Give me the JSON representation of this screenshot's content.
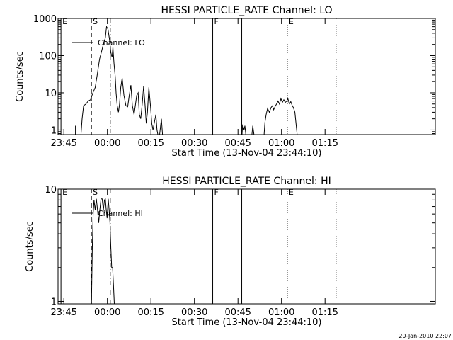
{
  "footer": {
    "timestamp": "20-Jan-2010 22:07"
  },
  "chart_data": [
    {
      "type": "line",
      "title": "HESSI PARTICLE_RATE Channel: LO",
      "xlabel": "Start Time (13-Nov-04 23:44:10)",
      "ylabel": "Counts/sec",
      "y_scale": "log",
      "ylim": [
        0.75,
        1000
      ],
      "xlim_minutes": [
        -1,
        129
      ],
      "x_tick_labels": [
        {
          "minute": 1,
          "label": "23:45"
        },
        {
          "minute": 16,
          "label": "00:00"
        },
        {
          "minute": 31,
          "label": "00:15"
        },
        {
          "minute": 46,
          "label": "00:30"
        },
        {
          "minute": 61,
          "label": "00:45"
        },
        {
          "minute": 76,
          "label": "01:00"
        },
        {
          "minute": 91,
          "label": "01:15"
        }
      ],
      "y_tick_labels": [
        {
          "value": 1,
          "label": "1"
        },
        {
          "value": 10,
          "label": "10"
        },
        {
          "value": 100,
          "label": "100"
        },
        {
          "value": 1000,
          "label": "1000"
        }
      ],
      "y_minor_ticks": true,
      "legend": {
        "label": "Channel: LO",
        "placement": "top-left"
      },
      "markers": [
        {
          "minute": 0,
          "label": "E",
          "style": "solid"
        },
        {
          "minute": 10.5,
          "label": "S",
          "style": "dashed"
        },
        {
          "minute": 17.0,
          "label": "",
          "style": "dashdot"
        },
        {
          "minute": 52.3,
          "label": "F",
          "style": "solid"
        },
        {
          "minute": 62.3,
          "label": "",
          "style": "solid"
        },
        {
          "minute": 78.0,
          "label": "E",
          "style": "dotted"
        },
        {
          "minute": 94.8,
          "label": "",
          "style": "dotted"
        }
      ],
      "series": [
        {
          "segments": [
            [
              [
                5.0,
                0.75
              ],
              [
                5.0,
                1.3
              ],
              [
                5.1,
                0.75
              ]
            ],
            [
              [
                6.9,
                0.75
              ],
              [
                7.3,
                2.0
              ],
              [
                7.8,
                4.5
              ],
              [
                8.6,
                5.0
              ],
              [
                9.4,
                6.0
              ],
              [
                10.2,
                6.5
              ],
              [
                10.9,
                9.5
              ],
              [
                11.8,
                14
              ],
              [
                12.5,
                30
              ],
              [
                13.3,
                80
              ],
              [
                14.0,
                130
              ],
              [
                14.6,
                200
              ],
              [
                15.3,
                300
              ],
              [
                15.7,
                600
              ],
              [
                16.2,
                520
              ],
              [
                16.7,
                280
              ],
              [
                17.2,
                120
              ],
              [
                17.6,
                90
              ],
              [
                17.9,
                170
              ],
              [
                18.3,
                60
              ],
              [
                18.7,
                27
              ],
              [
                19.0,
                10
              ],
              [
                19.4,
                4.5
              ],
              [
                19.8,
                3.0
              ],
              [
                20.2,
                5.0
              ],
              [
                20.6,
                14
              ],
              [
                21.1,
                25
              ],
              [
                21.7,
                8.5
              ],
              [
                22.4,
                4.5
              ],
              [
                23.0,
                4.2
              ],
              [
                23.5,
                8.0
              ],
              [
                24.1,
                16
              ],
              [
                24.6,
                4.5
              ],
              [
                25.2,
                2.6
              ],
              [
                25.7,
                5.0
              ],
              [
                26.1,
                8.5
              ],
              [
                26.6,
                10
              ],
              [
                27.0,
                2.6
              ],
              [
                27.5,
                2.0
              ],
              [
                28.0,
                5.0
              ],
              [
                28.5,
                15
              ],
              [
                29.0,
                4.5
              ],
              [
                29.4,
                1.5
              ],
              [
                29.8,
                3.0
              ],
              [
                30.3,
                14
              ],
              [
                30.9,
                4.0
              ],
              [
                31.3,
                1.5
              ],
              [
                31.7,
                1.0
              ],
              [
                32.2,
                1.6
              ],
              [
                32.7,
                2.6
              ],
              [
                33.1,
                1.0
              ],
              [
                33.4,
                0.75
              ]
            ],
            [
              [
                34.0,
                0.75
              ],
              [
                34.3,
                1.2
              ],
              [
                34.6,
                2.0
              ],
              [
                35.0,
                0.75
              ]
            ],
            [
              [
                62.4,
                0.75
              ],
              [
                62.6,
                1.4
              ],
              [
                63.1,
                1.0
              ],
              [
                63.4,
                1.3
              ],
              [
                63.7,
                0.75
              ]
            ],
            [
              [
                65.8,
                0.75
              ],
              [
                66.1,
                1.3
              ],
              [
                66.5,
                0.75
              ]
            ],
            [
              [
                70.0,
                0.75
              ],
              [
                70.3,
                1.6
              ],
              [
                70.7,
                2.6
              ],
              [
                71.2,
                3.8
              ],
              [
                71.8,
                3.0
              ],
              [
                72.4,
                4.0
              ],
              [
                72.9,
                4.5
              ],
              [
                73.3,
                3.5
              ],
              [
                73.8,
                4.3
              ],
              [
                74.3,
                5.0
              ],
              [
                74.8,
                6.0
              ],
              [
                75.3,
                5.0
              ],
              [
                75.8,
                7.0
              ],
              [
                76.3,
                5.5
              ],
              [
                76.8,
                6.5
              ],
              [
                77.3,
                5.5
              ],
              [
                77.8,
                6.0
              ],
              [
                78.2,
                7.0
              ],
              [
                78.7,
                5.0
              ],
              [
                79.2,
                5.8
              ],
              [
                79.7,
                4.5
              ],
              [
                80.1,
                4.0
              ],
              [
                80.6,
                3.0
              ],
              [
                81.0,
                1.5
              ],
              [
                81.4,
                0.75
              ]
            ]
          ]
        }
      ]
    },
    {
      "type": "line",
      "title": "HESSI PARTICLE_RATE Channel: HI",
      "xlabel": "Start Time (13-Nov-04 23:44:10)",
      "ylabel": "Counts/sec",
      "y_scale": "log",
      "ylim": [
        0.95,
        10
      ],
      "xlim_minutes": [
        -1,
        129
      ],
      "x_tick_labels": [
        {
          "minute": 1,
          "label": "23:45"
        },
        {
          "minute": 16,
          "label": "00:00"
        },
        {
          "minute": 31,
          "label": "00:15"
        },
        {
          "minute": 46,
          "label": "00:30"
        },
        {
          "minute": 61,
          "label": "00:45"
        },
        {
          "minute": 76,
          "label": "01:00"
        },
        {
          "minute": 91,
          "label": "01:15"
        }
      ],
      "y_tick_labels": [
        {
          "value": 1,
          "label": "1"
        },
        {
          "value": 10,
          "label": "10"
        }
      ],
      "y_minor_ticks": true,
      "legend": {
        "label": "Channel: HI",
        "placement": "top-left"
      },
      "markers": [
        {
          "minute": 0,
          "label": "E",
          "style": "solid"
        },
        {
          "minute": 10.5,
          "label": "S",
          "style": "dashed"
        },
        {
          "minute": 17.0,
          "label": "",
          "style": "dashdot"
        },
        {
          "minute": 52.3,
          "label": "F",
          "style": "solid"
        },
        {
          "minute": 62.3,
          "label": "",
          "style": "solid"
        },
        {
          "minute": 78.0,
          "label": "E",
          "style": "dotted"
        },
        {
          "minute": 94.8,
          "label": "",
          "style": "dotted"
        }
      ],
      "series": [
        {
          "segments": [
            [
              [
                10.5,
                0.95
              ],
              [
                10.8,
                3.0
              ],
              [
                11.1,
                6.0
              ],
              [
                11.4,
                8.0
              ],
              [
                11.8,
                6.5
              ],
              [
                12.2,
                8.2
              ],
              [
                12.6,
                6.5
              ],
              [
                13.0,
                5.0
              ],
              [
                13.4,
                6.5
              ],
              [
                13.8,
                8.2
              ],
              [
                14.2,
                8.2
              ],
              [
                14.6,
                6.5
              ],
              [
                15.0,
                8.0
              ],
              [
                15.3,
                8.2
              ],
              [
                15.6,
                6.5
              ],
              [
                15.9,
                5.5
              ],
              [
                16.3,
                8.2
              ],
              [
                16.6,
                6.5
              ],
              [
                16.9,
                5.0
              ],
              [
                17.2,
                3.0
              ],
              [
                17.5,
                2.0
              ],
              [
                17.8,
                2.0
              ],
              [
                18.1,
                1.4
              ],
              [
                18.4,
                0.95
              ]
            ]
          ]
        }
      ]
    }
  ]
}
